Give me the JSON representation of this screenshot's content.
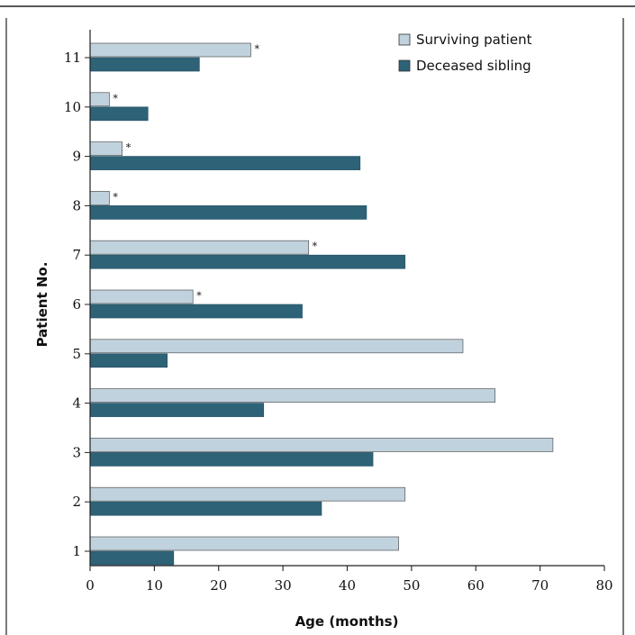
{
  "chart_data": {
    "type": "bar",
    "orientation": "horizontal",
    "categories": [
      "1",
      "2",
      "3",
      "4",
      "5",
      "6",
      "7",
      "8",
      "9",
      "10",
      "11"
    ],
    "series": [
      {
        "name": "Surviving patient",
        "values": [
          48,
          49,
          72,
          63,
          58,
          16,
          34,
          3,
          5,
          3,
          25
        ],
        "color": "#c0d2dd",
        "annotations": [
          "",
          "",
          "",
          "",
          "",
          "*",
          "*",
          "*",
          "*",
          "*",
          "*"
        ]
      },
      {
        "name": "Deceased sibling",
        "values": [
          13,
          36,
          44,
          27,
          12,
          33,
          49,
          43,
          42,
          9,
          17
        ],
        "color": "#2d6277",
        "annotations": [
          "",
          "",
          "",
          "",
          "",
          "",
          "",
          "",
          "",
          "",
          ""
        ]
      }
    ],
    "xlabel": "Age (months)",
    "ylabel": "Patient No.",
    "xlim": [
      0,
      80
    ],
    "xticks": [
      "0",
      "10",
      "20",
      "30",
      "40",
      "50",
      "60",
      "70",
      "80"
    ],
    "legend_position": "top-right",
    "grid": false
  }
}
